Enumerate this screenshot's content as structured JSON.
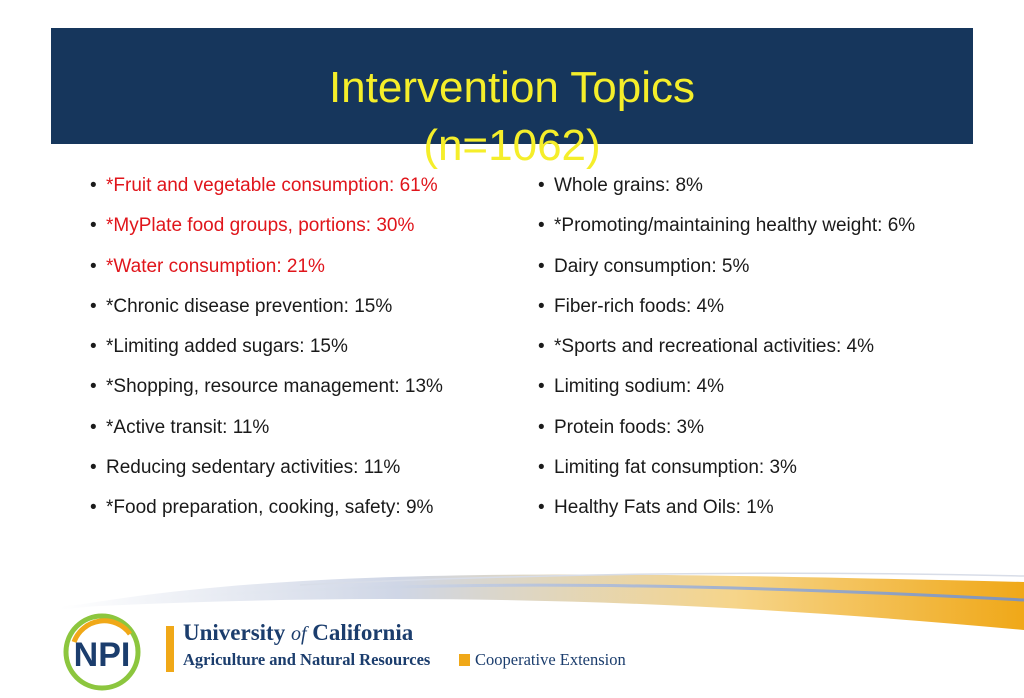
{
  "header": {
    "title": "Intervention Topics",
    "subtitle": "(n=1062)"
  },
  "colors": {
    "header_bg": "#16365c",
    "title_color": "#f5ee2a",
    "highlight": "#e0151b",
    "brand_gold": "#f0a818",
    "brand_blue": "#1b3d6d"
  },
  "topics_left": [
    {
      "text": "*Fruit and vegetable consumption: 61%",
      "highlight": true
    },
    {
      "text": "*MyPlate food groups, portions: 30%",
      "highlight": true
    },
    {
      "text": "*Water consumption: 21%",
      "highlight": true
    },
    {
      "text": "*Chronic disease prevention: 15%",
      "highlight": false
    },
    {
      "text": "*Limiting added sugars: 15%",
      "highlight": false
    },
    {
      "text": "*Shopping, resource management: 13%",
      "highlight": false
    },
    {
      "text": "*Active transit: 11%",
      "highlight": false
    },
    {
      "text": "Reducing sedentary activities: 11%",
      "highlight": false
    },
    {
      "text": "*Food preparation, cooking, safety: 9%",
      "highlight": false
    }
  ],
  "topics_right": [
    {
      "text": "Whole grains: 8%",
      "highlight": false
    },
    {
      "text": "*Promoting/maintaining healthy weight: 6%",
      "highlight": false
    },
    {
      "text": "Dairy consumption: 5%",
      "highlight": false
    },
    {
      "text": "Fiber-rich foods: 4%",
      "highlight": false
    },
    {
      "text": "*Sports and recreational activities: 4%",
      "highlight": false
    },
    {
      "text": "Limiting sodium: 4%",
      "highlight": false
    },
    {
      "text": "Protein foods: 3%",
      "highlight": false
    },
    {
      "text": "Limiting fat consumption: 3%",
      "highlight": false
    },
    {
      "text": "Healthy Fats and Oils: 1%",
      "highlight": false
    }
  ],
  "footer": {
    "logo_text": "NPI",
    "uc_name_part1": "University ",
    "uc_name_of": "of",
    "uc_name_part2": " California",
    "uc_division": "Agriculture and Natural Resources",
    "cooperative_extension": "Cooperative Extension"
  }
}
